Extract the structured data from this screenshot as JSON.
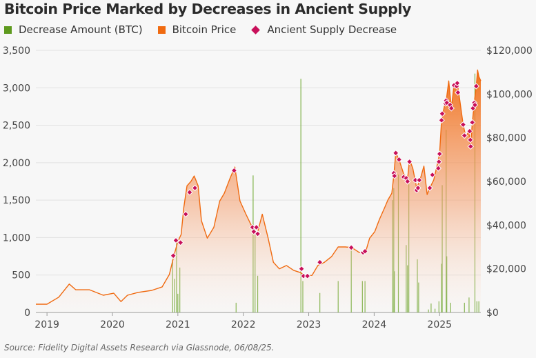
{
  "chart_data": {
    "type": "bar+area+scatter",
    "title": "Bitcoin Price Marked by Decreases in Ancient Supply",
    "source": "Source: Fidelity Digital Assets Research via Glassnode, 06/08/25.",
    "legend": [
      {
        "name": "Decrease Amount (BTC)",
        "color": "#5e9a1e",
        "shape": "square"
      },
      {
        "name": "Bitcoin Price",
        "color": "#f06a10",
        "shape": "square"
      },
      {
        "name": "Ancient Supply Decrease",
        "color": "#c8105a",
        "shape": "diamond"
      }
    ],
    "legend_placement": "top-left",
    "grid": true,
    "x_ticks": [
      "2019",
      "2020",
      "2021",
      "2022",
      "2023",
      "2024",
      "2025"
    ],
    "x_tick_values": [
      2019,
      2020,
      2021,
      2022,
      2023,
      2024,
      2025
    ],
    "xlim": [
      2018.83,
      2025.63
    ],
    "y_left": {
      "ticks": [
        "0",
        "500",
        "1,000",
        "1,500",
        "2,000",
        "2,500",
        "3,000",
        "3,500"
      ],
      "lim": [
        0,
        3500
      ]
    },
    "y_right": {
      "ticks": [
        "$0",
        "$20,000",
        "$40,000",
        "$60,000",
        "$80,000",
        "$100,000",
        "$120,000"
      ],
      "lim": [
        0,
        120000
      ]
    },
    "price_series": {
      "name": "Bitcoin Price",
      "points": [
        [
          2018.83,
          3800
        ],
        [
          2019.0,
          3800
        ],
        [
          2019.18,
          7000
        ],
        [
          2019.34,
          13000
        ],
        [
          2019.44,
          10400
        ],
        [
          2019.65,
          10400
        ],
        [
          2019.86,
          7900
        ],
        [
          2020.02,
          8800
        ],
        [
          2020.13,
          5000
        ],
        [
          2020.23,
          7900
        ],
        [
          2020.39,
          9200
        ],
        [
          2020.6,
          10100
        ],
        [
          2020.76,
          11700
        ],
        [
          2020.87,
          17400
        ],
        [
          2020.94,
          26000
        ],
        [
          2021.0,
          32500
        ],
        [
          2021.05,
          35700
        ],
        [
          2021.09,
          48000
        ],
        [
          2021.14,
          58000
        ],
        [
          2021.2,
          60000
        ],
        [
          2021.25,
          62500
        ],
        [
          2021.31,
          58000
        ],
        [
          2021.36,
          42000
        ],
        [
          2021.45,
          34000
        ],
        [
          2021.55,
          39000
        ],
        [
          2021.64,
          51000
        ],
        [
          2021.71,
          54600
        ],
        [
          2021.8,
          61600
        ],
        [
          2021.87,
          66600
        ],
        [
          2021.95,
          51000
        ],
        [
          2022.04,
          45000
        ],
        [
          2022.12,
          40000
        ],
        [
          2022.21,
          35700
        ],
        [
          2022.29,
          45000
        ],
        [
          2022.38,
          34000
        ],
        [
          2022.46,
          23000
        ],
        [
          2022.55,
          20000
        ],
        [
          2022.66,
          21500
        ],
        [
          2022.77,
          19300
        ],
        [
          2022.87,
          18300
        ],
        [
          2022.95,
          16700
        ],
        [
          2023.05,
          17000
        ],
        [
          2023.14,
          21500
        ],
        [
          2023.24,
          23000
        ],
        [
          2023.35,
          25600
        ],
        [
          2023.45,
          30000
        ],
        [
          2023.56,
          30000
        ],
        [
          2023.66,
          29700
        ],
        [
          2023.77,
          27500
        ],
        [
          2023.87,
          27800
        ],
        [
          2023.93,
          34000
        ],
        [
          2024.01,
          37000
        ],
        [
          2024.08,
          42600
        ],
        [
          2024.16,
          48000
        ],
        [
          2024.21,
          51500
        ],
        [
          2024.27,
          54600
        ],
        [
          2024.3,
          62500
        ],
        [
          2024.33,
          73000
        ],
        [
          2024.38,
          70000
        ],
        [
          2024.45,
          63500
        ],
        [
          2024.51,
          61000
        ],
        [
          2024.54,
          70000
        ],
        [
          2024.59,
          66000
        ],
        [
          2024.65,
          57000
        ],
        [
          2024.7,
          60600
        ],
        [
          2024.76,
          67000
        ],
        [
          2024.81,
          54000
        ],
        [
          2024.85,
          57000
        ],
        [
          2024.91,
          60600
        ],
        [
          2024.96,
          67000
        ],
        [
          2025.0,
          72600
        ],
        [
          2025.03,
          88000
        ],
        [
          2025.07,
          94000
        ],
        [
          2025.11,
          99000
        ],
        [
          2025.14,
          106000
        ],
        [
          2025.18,
          93500
        ],
        [
          2025.22,
          104000
        ],
        [
          2025.27,
          105000
        ],
        [
          2025.31,
          97000
        ],
        [
          2025.36,
          86000
        ],
        [
          2025.4,
          80500
        ],
        [
          2025.45,
          83000
        ],
        [
          2025.47,
          75000
        ],
        [
          2025.5,
          87000
        ],
        [
          2025.53,
          96000
        ],
        [
          2025.56,
          103600
        ],
        [
          2025.58,
          111000
        ],
        [
          2025.6,
          108000
        ],
        [
          2025.63,
          106000
        ]
      ]
    },
    "decrease_bars": {
      "name": "Decrease Amount (BTC)",
      "points": [
        [
          2020.92,
          700
        ],
        [
          2020.95,
          450
        ],
        [
          2020.98,
          950
        ],
        [
          2021.0,
          250
        ],
        [
          2021.03,
          600
        ],
        [
          2021.89,
          130
        ],
        [
          2022.15,
          1830
        ],
        [
          2022.18,
          1130
        ],
        [
          2022.22,
          490
        ],
        [
          2022.88,
          3120
        ],
        [
          2022.91,
          420
        ],
        [
          2023.17,
          260
        ],
        [
          2023.45,
          420
        ],
        [
          2023.65,
          830
        ],
        [
          2023.82,
          420
        ],
        [
          2023.86,
          420
        ],
        [
          2024.28,
          1500
        ],
        [
          2024.3,
          1660
        ],
        [
          2024.31,
          550
        ],
        [
          2024.37,
          1840
        ],
        [
          2024.49,
          900
        ],
        [
          2024.51,
          630
        ],
        [
          2024.53,
          1710
        ],
        [
          2024.66,
          710
        ],
        [
          2024.68,
          400
        ],
        [
          2024.83,
          40
        ],
        [
          2024.87,
          120
        ],
        [
          2024.93,
          50
        ],
        [
          2024.99,
          150
        ],
        [
          2025.03,
          650
        ],
        [
          2025.04,
          1700
        ],
        [
          2025.1,
          2440
        ],
        [
          2025.11,
          750
        ],
        [
          2025.17,
          130
        ],
        [
          2025.38,
          130
        ],
        [
          2025.45,
          200
        ],
        [
          2025.54,
          3190
        ],
        [
          2025.57,
          150
        ],
        [
          2025.6,
          150
        ]
      ]
    },
    "ancient_supply_markers": {
      "name": "Ancient Supply Decrease",
      "points": [
        [
          2020.93,
          26000
        ],
        [
          2020.97,
          33000
        ],
        [
          2021.04,
          32000
        ],
        [
          2021.12,
          45000
        ],
        [
          2021.18,
          55000
        ],
        [
          2021.26,
          57000
        ],
        [
          2021.86,
          65000
        ],
        [
          2022.14,
          39000
        ],
        [
          2022.16,
          37000
        ],
        [
          2022.2,
          39000
        ],
        [
          2022.22,
          36000
        ],
        [
          2022.89,
          20000
        ],
        [
          2022.92,
          16700
        ],
        [
          2022.98,
          16700
        ],
        [
          2023.17,
          23000
        ],
        [
          2023.65,
          29700
        ],
        [
          2023.83,
          27500
        ],
        [
          2023.86,
          28000
        ],
        [
          2024.3,
          63800
        ],
        [
          2024.31,
          62500
        ],
        [
          2024.33,
          73000
        ],
        [
          2024.38,
          70000
        ],
        [
          2024.45,
          62000
        ],
        [
          2024.49,
          61500
        ],
        [
          2024.51,
          60000
        ],
        [
          2024.54,
          69000
        ],
        [
          2024.63,
          60600
        ],
        [
          2024.65,
          56000
        ],
        [
          2024.67,
          57000
        ],
        [
          2024.69,
          60600
        ],
        [
          2024.85,
          57000
        ],
        [
          2024.89,
          63000
        ],
        [
          2024.98,
          66000
        ],
        [
          2024.99,
          69000
        ],
        [
          2025.0,
          72600
        ],
        [
          2025.03,
          88000
        ],
        [
          2025.04,
          91000
        ],
        [
          2025.09,
          95700
        ],
        [
          2025.1,
          97000
        ],
        [
          2025.11,
          96000
        ],
        [
          2025.16,
          95000
        ],
        [
          2025.18,
          93500
        ],
        [
          2025.22,
          104000
        ],
        [
          2025.26,
          103600
        ],
        [
          2025.27,
          105000
        ],
        [
          2025.28,
          100700
        ],
        [
          2025.36,
          86000
        ],
        [
          2025.38,
          81000
        ],
        [
          2025.46,
          83000
        ],
        [
          2025.47,
          79000
        ],
        [
          2025.475,
          76000
        ],
        [
          2025.5,
          87000
        ],
        [
          2025.51,
          93500
        ],
        [
          2025.53,
          96000
        ],
        [
          2025.54,
          95000
        ],
        [
          2025.56,
          103600
        ]
      ]
    }
  }
}
